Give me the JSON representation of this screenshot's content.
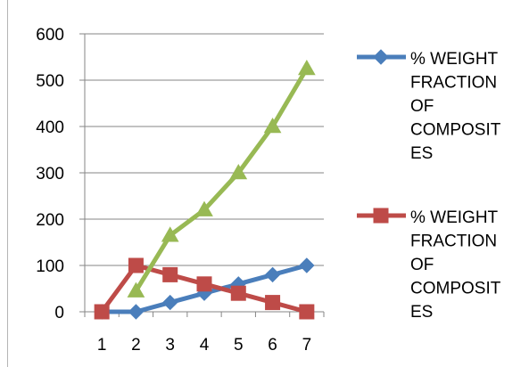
{
  "chart_data": {
    "type": "line",
    "title": "",
    "xlabel": "",
    "ylabel": "",
    "categories": [
      "1",
      "2",
      "3",
      "4",
      "5",
      "6",
      "7"
    ],
    "ylim": [
      0,
      600
    ],
    "yticks": [
      0,
      100,
      200,
      300,
      400,
      500,
      600
    ],
    "grid": "horizontal",
    "legend_position": "right",
    "series": [
      {
        "name": "% WEIGHT FRACTION OF COMPOSITES",
        "legend_lines": [
          "% WEIGHT",
          "FRACTION",
          "OF",
          "COMPOSIT",
          "ES"
        ],
        "color": "#4a7ebb",
        "marker": "diamond",
        "values": [
          0,
          0,
          20,
          40,
          60,
          80,
          100
        ]
      },
      {
        "name": "% WEIGHT FRACTION OF COMPOSITES",
        "legend_lines": [
          "% WEIGHT",
          "FRACTION",
          "OF",
          "COMPOSIT",
          "ES"
        ],
        "color": "#be4b48",
        "marker": "square",
        "values": [
          0,
          100,
          80,
          60,
          40,
          20,
          0
        ]
      },
      {
        "color": "#98b954",
        "marker": "triangle",
        "values": [
          null,
          45,
          165,
          220,
          300,
          400,
          525
        ]
      }
    ]
  }
}
